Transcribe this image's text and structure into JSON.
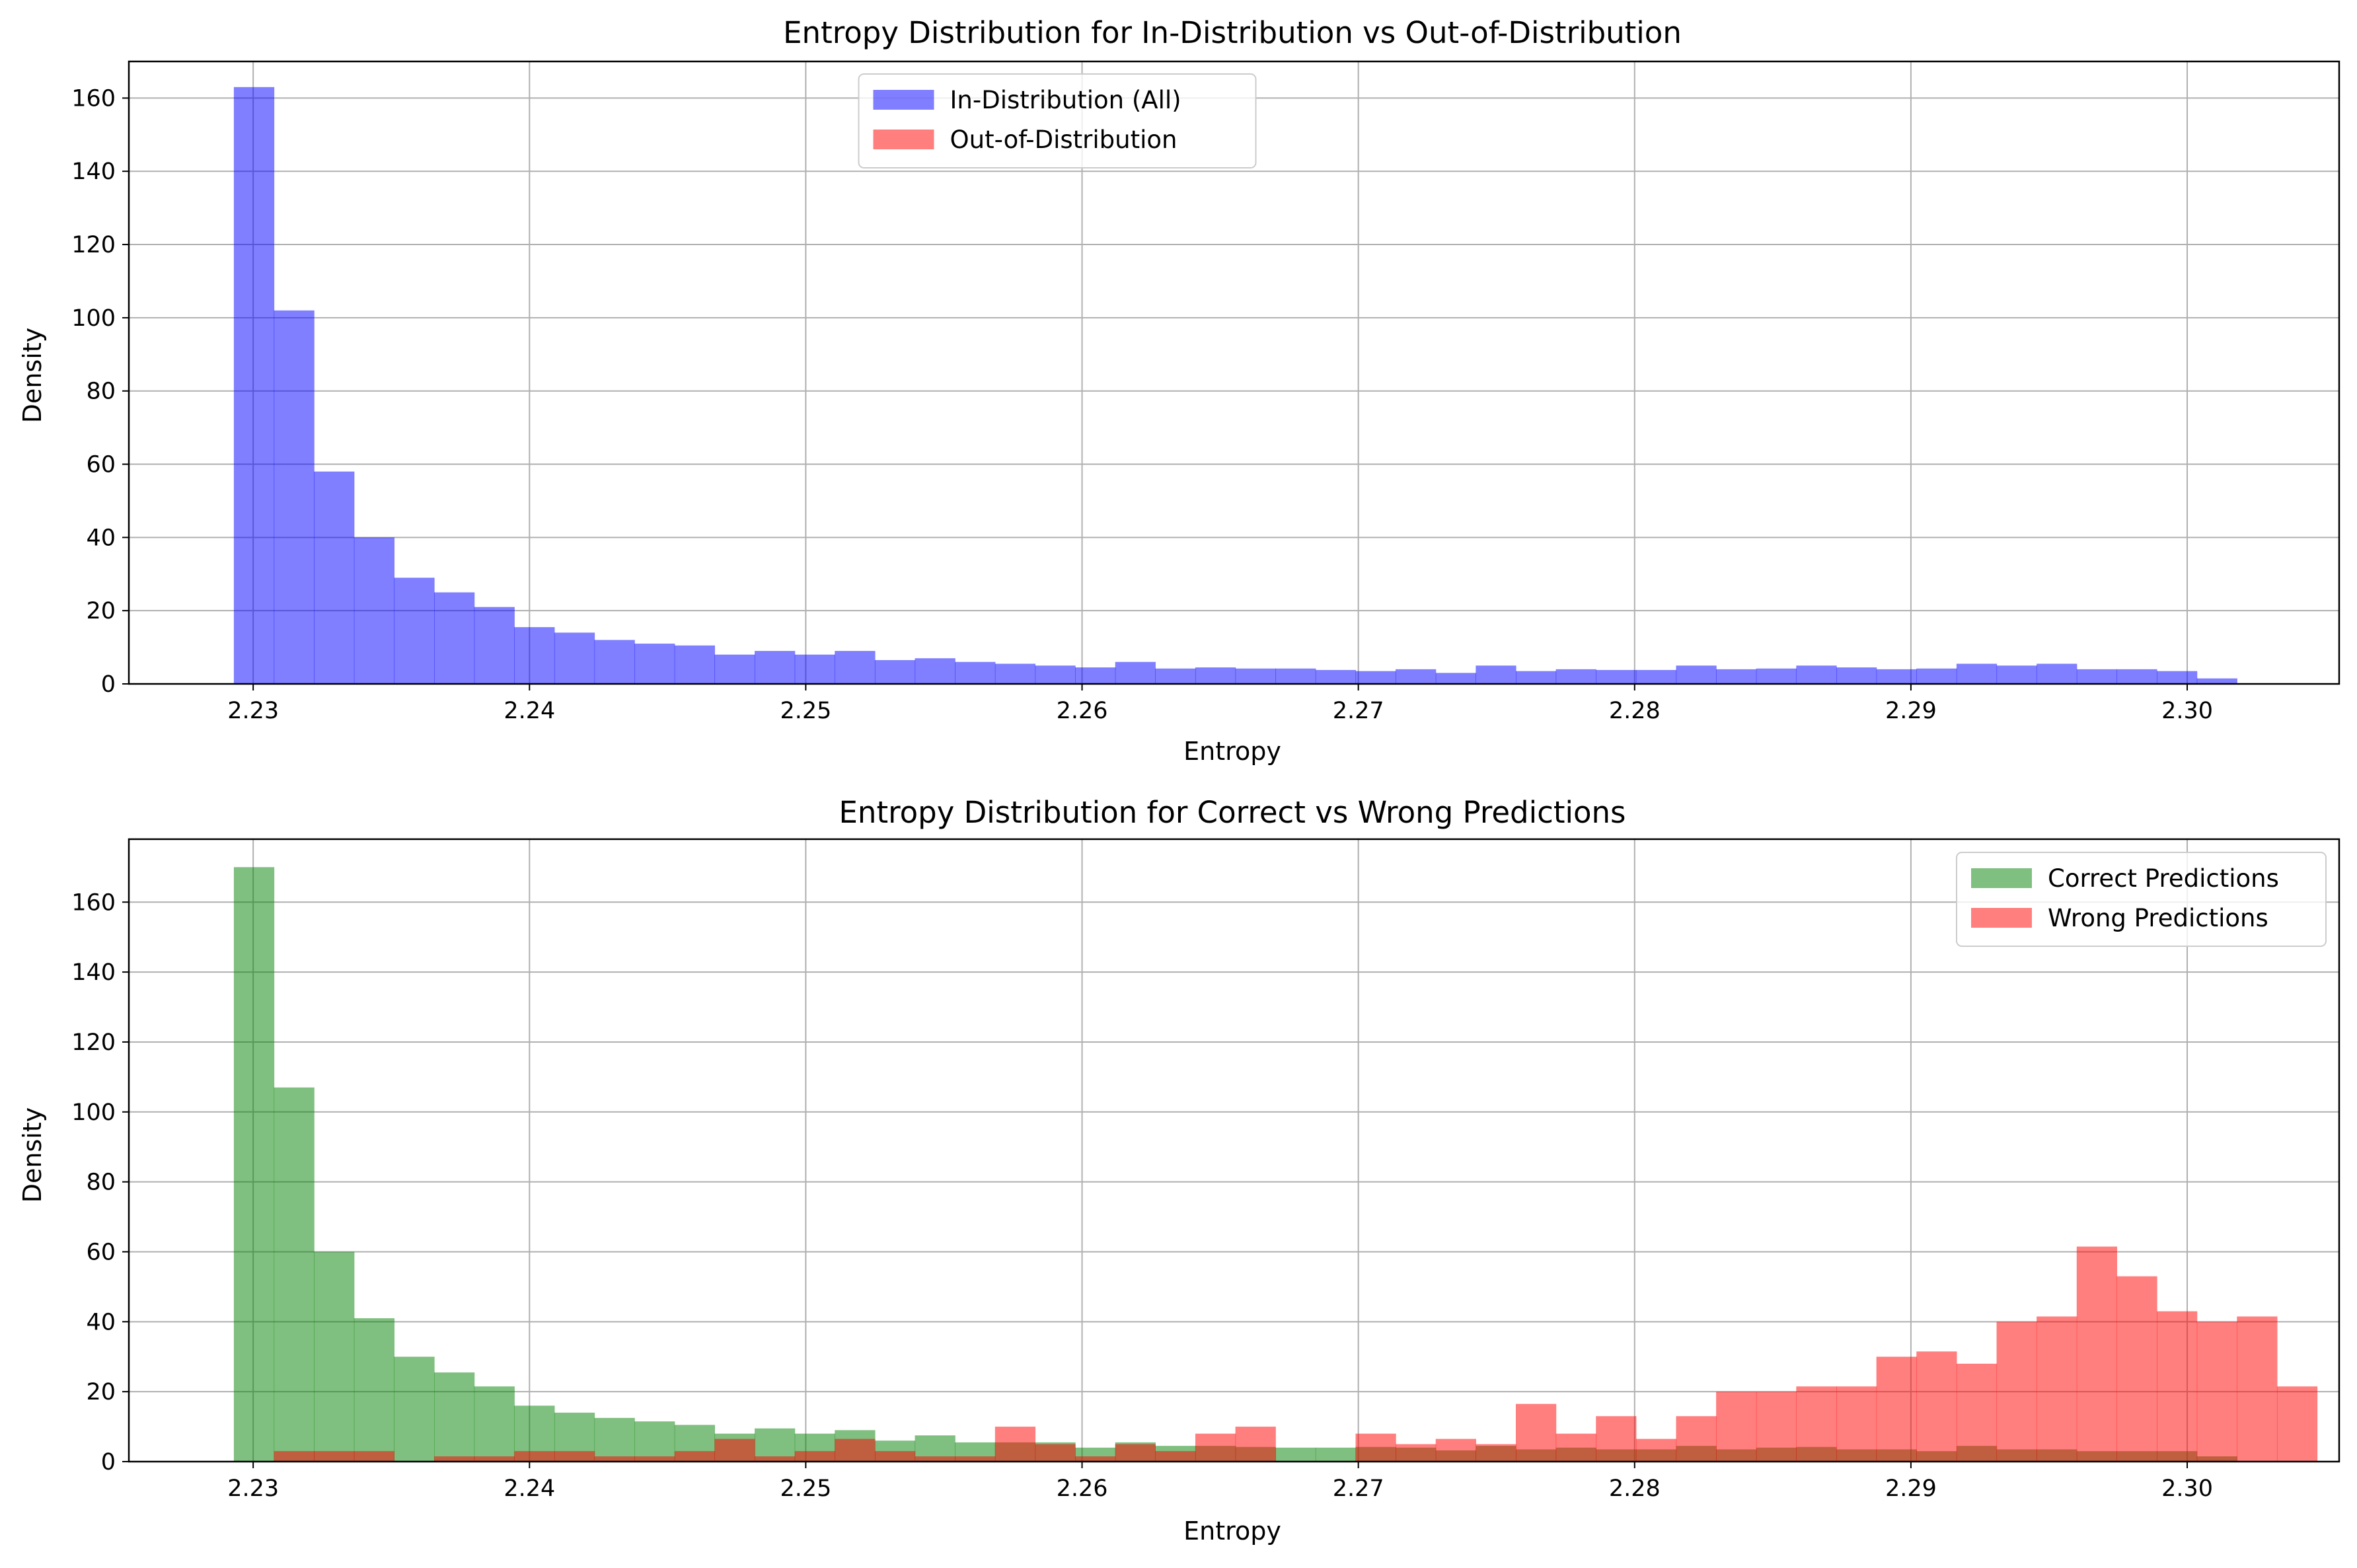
{
  "figure": {
    "background": "#ffffff"
  },
  "chart_data": [
    {
      "type": "bar",
      "title": "Entropy Distribution for In-Distribution vs Out-of-Distribution",
      "xlabel": "Entropy",
      "ylabel": "Density",
      "xlim": [
        2.2255,
        2.3055
      ],
      "ylim": [
        0,
        170
      ],
      "xticks": [
        2.23,
        2.24,
        2.25,
        2.26,
        2.27,
        2.28,
        2.29,
        2.3
      ],
      "xtick_labels": [
        "2.23",
        "2.24",
        "2.25",
        "2.26",
        "2.27",
        "2.28",
        "2.29",
        "2.30"
      ],
      "yticks": [
        0,
        20,
        40,
        60,
        80,
        100,
        120,
        140,
        160
      ],
      "ytick_labels": [
        "0",
        "20",
        "40",
        "60",
        "80",
        "100",
        "120",
        "140",
        "160"
      ],
      "grid": true,
      "legend_position": "top-center",
      "bin_start": 2.2293,
      "bin_width": 0.00145,
      "series": [
        {
          "name": "In-Distribution (All)",
          "color": "#0000ff",
          "alpha": 0.5,
          "values": [
            163,
            102,
            58,
            40,
            29,
            25,
            21,
            15.5,
            14,
            12,
            11,
            10.5,
            8,
            9,
            8,
            9,
            6.5,
            7,
            6,
            5.5,
            5,
            4.5,
            6,
            4.2,
            4.5,
            4.2,
            4.2,
            3.8,
            3.5,
            4,
            3,
            5,
            3.5,
            4,
            3.8,
            3.8,
            5,
            4,
            4.2,
            5,
            4.5,
            4,
            4.2,
            5.5,
            5,
            5.5,
            4,
            4,
            3.5,
            1.5
          ]
        },
        {
          "name": "Out-of-Distribution",
          "color": "#ff0000",
          "alpha": 0.5,
          "values": []
        }
      ]
    },
    {
      "type": "bar",
      "title": "Entropy Distribution for Correct vs Wrong Predictions",
      "xlabel": "Entropy",
      "ylabel": "Density",
      "xlim": [
        2.2255,
        2.3055
      ],
      "ylim": [
        0,
        178
      ],
      "xticks": [
        2.23,
        2.24,
        2.25,
        2.26,
        2.27,
        2.28,
        2.29,
        2.3
      ],
      "xtick_labels": [
        "2.23",
        "2.24",
        "2.25",
        "2.26",
        "2.27",
        "2.28",
        "2.29",
        "2.30"
      ],
      "yticks": [
        0,
        20,
        40,
        60,
        80,
        100,
        120,
        140,
        160
      ],
      "ytick_labels": [
        "0",
        "20",
        "40",
        "60",
        "80",
        "100",
        "120",
        "140",
        "160"
      ],
      "grid": true,
      "legend_position": "top-right",
      "bin_start": 2.2293,
      "bin_width": 0.00145,
      "series": [
        {
          "name": "Correct Predictions",
          "color": "#008000",
          "alpha": 0.5,
          "values": [
            170,
            107,
            60,
            41,
            30,
            25.5,
            21.5,
            16,
            14,
            12.5,
            11.5,
            10.5,
            8,
            9.5,
            8,
            9,
            6,
            7.5,
            5.5,
            5.5,
            5.5,
            4,
            5.5,
            4.5,
            4.5,
            4.2,
            4,
            4,
            4.2,
            4,
            3.2,
            4.5,
            3.5,
            4,
            3.5,
            3.5,
            4.5,
            3.5,
            4,
            4.2,
            3.5,
            3.5,
            3,
            4.5,
            3.5,
            3.5,
            3,
            3,
            3,
            1.5
          ]
        },
        {
          "name": "Wrong Predictions",
          "color": "#ff0000",
          "alpha": 0.5,
          "values": [
            0,
            3,
            3,
            3,
            0,
            1.5,
            1.5,
            3,
            3,
            1.5,
            1.5,
            3,
            6.5,
            1.5,
            3,
            6.5,
            3,
            1.5,
            1.5,
            10,
            5,
            1.5,
            5,
            3,
            8,
            10,
            0,
            0,
            8,
            5,
            6.5,
            5,
            16.5,
            8,
            13,
            6.5,
            13,
            20,
            20,
            21.5,
            21.5,
            30,
            31.5,
            28,
            40,
            41.5,
            61.5,
            53,
            43,
            40,
            41.5,
            21.5
          ]
        }
      ]
    }
  ]
}
